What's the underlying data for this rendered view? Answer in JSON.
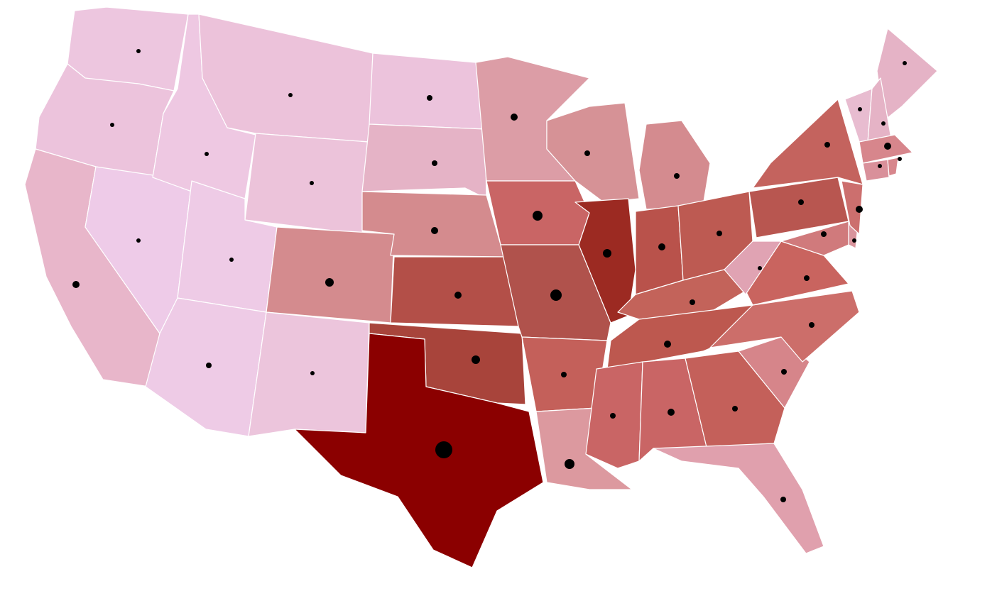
{
  "map": {
    "regions": [
      {
        "color": "#edc6df",
        "size": 3
      },
      {
        "color": "#ecc3dc",
        "size": 3
      },
      {
        "color": "#e8b6ca",
        "size": 5
      },
      {
        "color": "#eecbe8",
        "size": 3
      },
      {
        "color": "#eec8e2",
        "size": 3
      },
      {
        "color": "#ecc2da",
        "size": 3
      },
      {
        "color": "#ecc3da",
        "size": 3
      },
      {
        "color": "#eecbe6",
        "size": 3
      },
      {
        "color": "#d48b8e",
        "size": 6
      },
      {
        "color": "#eecbe6",
        "size": 4
      },
      {
        "color": "#ecc5dc",
        "size": 3
      },
      {
        "color": "#ecc3dc",
        "size": 4
      },
      {
        "color": "#e5b3c6",
        "size": 4
      },
      {
        "color": "#d48b8e",
        "size": 5
      },
      {
        "color": "#b34f48",
        "size": 5
      },
      {
        "color": "#a8443b",
        "size": 6
      },
      {
        "color": "#8b0000",
        "size": 12
      },
      {
        "color": "#dc9da6",
        "size": 5
      },
      {
        "color": "#c96565",
        "size": 7
      },
      {
        "color": "#b0524c",
        "size": 8
      },
      {
        "color": "#c4605a",
        "size": 4
      },
      {
        "color": "#dc999f",
        "size": 7
      },
      {
        "color": "#d69296",
        "size": 4
      },
      {
        "color": "#9c2a22",
        "size": 6
      },
      {
        "color": "#d48b8f",
        "size": 4
      },
      {
        "color": "#b9524b",
        "size": 5
      },
      {
        "color": "#bd5a52",
        "size": 4
      },
      {
        "color": "#c3635a",
        "size": 4
      },
      {
        "color": "#bd584f",
        "size": 5
      },
      {
        "color": "#c96565",
        "size": 4
      },
      {
        "color": "#c96565",
        "size": 5
      },
      {
        "color": "#c4605a",
        "size": 4
      },
      {
        "color": "#e0a0ad",
        "size": 4
      },
      {
        "color": "#d6858a",
        "size": 4
      },
      {
        "color": "#cc6e6a",
        "size": 4
      },
      {
        "color": "#c9645f",
        "size": 4
      },
      {
        "color": "#e0a3b3",
        "size": 3
      },
      {
        "color": "#b85650",
        "size": 4
      },
      {
        "color": "#c4635e",
        "size": 4
      },
      {
        "color": "#d07a7c",
        "size": 4
      },
      {
        "color": "#d9949c",
        "size": 3
      },
      {
        "color": "#cc6f6e",
        "size": 5
      },
      {
        "color": "#e5b3c6",
        "size": 3
      },
      {
        "color": "#e8bcd0",
        "size": 3
      },
      {
        "color": "#e5b3c6",
        "size": 3
      },
      {
        "color": "#d7868c",
        "size": 5
      },
      {
        "color": "#d9909a",
        "size": 3
      },
      {
        "color": "#d7868c",
        "size": 3
      }
    ]
  }
}
